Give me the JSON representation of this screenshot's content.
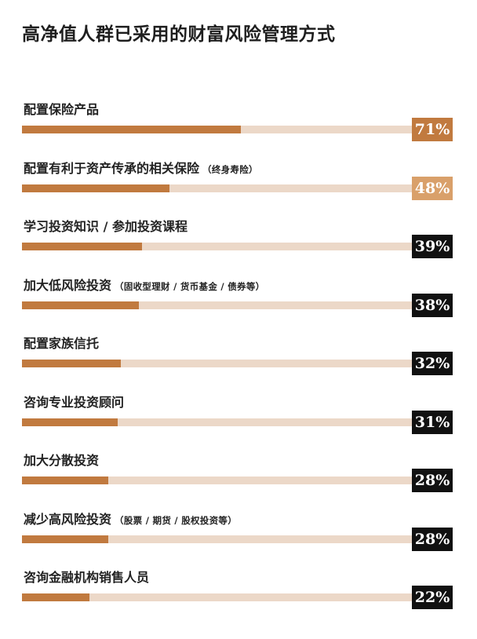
{
  "title": "高净值人群已采用的财富风险管理方式",
  "colors": {
    "bar_fill": "#c17a3f",
    "bar_track": "#ecd8c8",
    "highlight_badge": "#c17a3f",
    "default_badge": "#111111",
    "highlight_badge_light": "#d9a06a"
  },
  "chart_data": {
    "type": "bar",
    "orientation": "horizontal",
    "title": "高净值人群已采用的财富风险管理方式",
    "unit": "%",
    "xlim": [
      0,
      100
    ],
    "grid": false,
    "legend": "none",
    "categories": [
      {
        "label": "配置保险产品",
        "sub": ""
      },
      {
        "label": "配置有利于资产传承的相关保险",
        "sub": "（终身寿险）"
      },
      {
        "label": "学习投资知识 / 参加投资课程",
        "sub": ""
      },
      {
        "label": "加大低风险投资",
        "sub": "（固收型理财 / 货币基金 / 债券等）"
      },
      {
        "label": "配置家族信托",
        "sub": ""
      },
      {
        "label": "咨询专业投资顾问",
        "sub": ""
      },
      {
        "label": "加大分散投资",
        "sub": ""
      },
      {
        "label": "减少高风险投资",
        "sub": "（股票 / 期货 / 股权投资等）"
      },
      {
        "label": "咨询金融机构销售人员",
        "sub": ""
      }
    ],
    "values": [
      71,
      48,
      39,
      38,
      32,
      31,
      28,
      28,
      22
    ],
    "value_labels": [
      "71%",
      "48%",
      "39%",
      "38%",
      "32%",
      "31%",
      "28%",
      "28%",
      "22%"
    ],
    "highlighted": [
      0,
      1
    ]
  }
}
